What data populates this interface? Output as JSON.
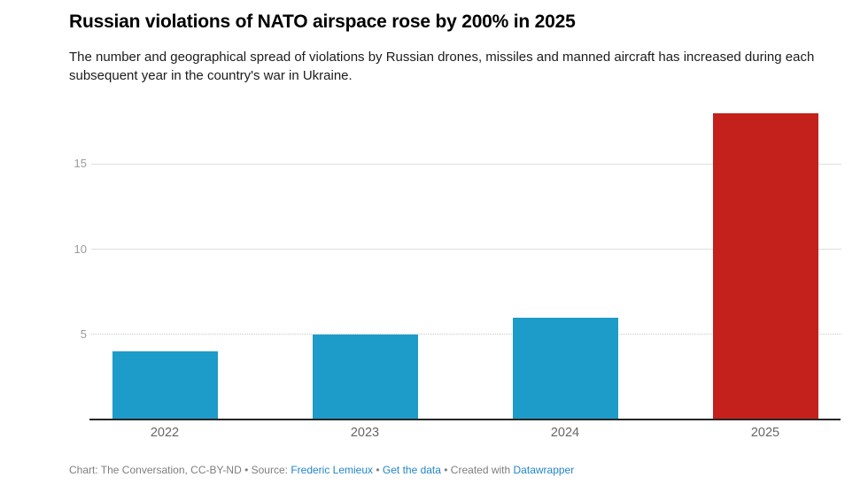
{
  "header": {
    "title": "Russian violations of NATO airspace rose by 200% in 2025",
    "subtitle": "The number and geographical spread of violations by Russian drones, missiles and manned aircraft has increased during each subsequent year in the country's war in Ukraine."
  },
  "chart_data": {
    "type": "bar",
    "title": "Russian violations of NATO airspace rose by 200% in 2025",
    "categories": [
      "2022",
      "2023",
      "2024",
      "2025"
    ],
    "values": [
      4,
      5,
      6,
      18
    ],
    "bar_colors": [
      "#1d9bc9",
      "#1d9bc9",
      "#1d9bc9",
      "#c4211d"
    ],
    "xlabel": "",
    "ylabel": "",
    "ylim": [
      0,
      19
    ],
    "yticks": [
      5,
      10,
      15
    ],
    "grid": "horizontal",
    "legend": "none"
  },
  "footer": {
    "prefix": "Chart: The Conversation, CC-BY-ND • Source: ",
    "source_link": "Frederic Lemieux",
    "sep1": " • ",
    "get_data_link": "Get the data",
    "sep2": " • Created with ",
    "datawrapper_link": "Datawrapper"
  },
  "colors": {
    "bar_blue": "#1d9bc9",
    "bar_red": "#c4211d",
    "link_blue": "#2386c8",
    "gridline": "#dedede",
    "axis_line": "#262626",
    "y_tick_label": "#9a9a9a",
    "x_axis_label": "#666666",
    "footer_text": "#7e7e7e",
    "background": "#ffffff"
  }
}
